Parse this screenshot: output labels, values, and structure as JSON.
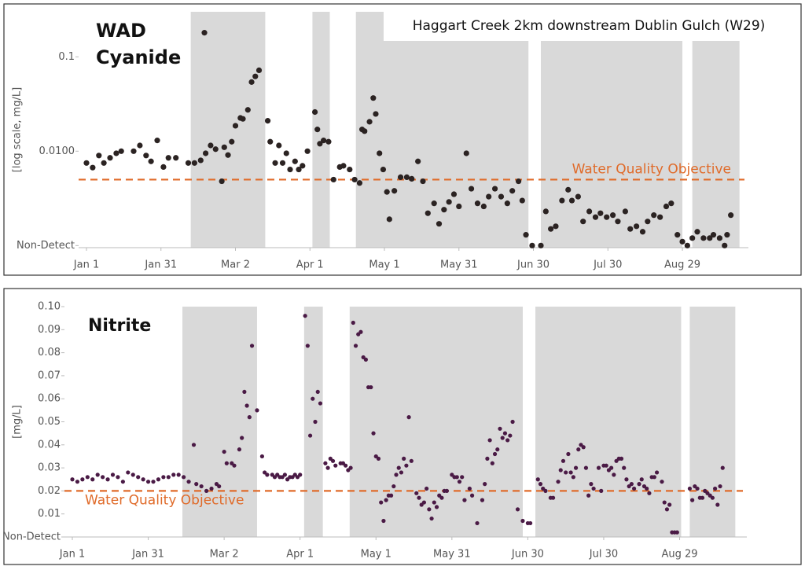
{
  "title": "Haggart Creek 2km downstream Dublin Gulch (W29)",
  "chart_data": [
    {
      "type": "scatter",
      "title": "WAD Cyanide",
      "ylabel": "[log scale, mg/L]",
      "log_y": true,
      "color": "#2b2322",
      "xlim": [
        0,
        265
      ],
      "ylim": [
        0.00095,
        0.3
      ],
      "xticks": [
        {
          "value": 0,
          "label": "Jan 1"
        },
        {
          "value": 30,
          "label": "Jan 31"
        },
        {
          "value": 60,
          "label": "Mar 2"
        },
        {
          "value": 90,
          "label": "Apr 1"
        },
        {
          "value": 120,
          "label": "May 1"
        },
        {
          "value": 150,
          "label": "May 31"
        },
        {
          "value": 180,
          "label": "Jun 30"
        },
        {
          "value": 210,
          "label": "Jul 30"
        },
        {
          "value": 240,
          "label": "Aug 29"
        }
      ],
      "yticks": [
        {
          "value": 0.001,
          "label": "Non-Detect"
        },
        {
          "value": 0.01,
          "label": "0.0100"
        },
        0.1
      ],
      "objective": {
        "label": "Water Quality Objective",
        "value": 0.005,
        "color": "#e06b2a"
      },
      "shaded_periods": [
        [
          42,
          72
        ],
        [
          91,
          98
        ],
        [
          108.5,
          178
        ],
        [
          183,
          240
        ],
        [
          244,
          263
        ]
      ],
      "shade_color": "#d9d9d9",
      "x": [
        0,
        2.5,
        5,
        7,
        9.5,
        12,
        14,
        19,
        21.5,
        24,
        26,
        28.5,
        31,
        33,
        36,
        41,
        43.5,
        46,
        47.5,
        48,
        50,
        52,
        54.5,
        55.5,
        57,
        58.5,
        60,
        62,
        63,
        65,
        66.5,
        68,
        69.5,
        73,
        74,
        76,
        77.5,
        79,
        80.5,
        82,
        84,
        85.5,
        87,
        89,
        92,
        93,
        94,
        95.5,
        97.5,
        99.5,
        102,
        103.5,
        106,
        108,
        110,
        111,
        112,
        114,
        115.5,
        116.5,
        118,
        119.5,
        121,
        122,
        124,
        126.5,
        129,
        131,
        133.5,
        135.5,
        137.5,
        140,
        142,
        144,
        146,
        148,
        150,
        153,
        155,
        157.5,
        160,
        162,
        164.5,
        167,
        169.5,
        171.5,
        174,
        175.5,
        177,
        179.5,
        183,
        185,
        187,
        189,
        191.5,
        194,
        195.5,
        198,
        200,
        202.5,
        205,
        207,
        209.5,
        212,
        214,
        217,
        219,
        221.5,
        224,
        226,
        228.5,
        231,
        233.5,
        235.5,
        238,
        240,
        242,
        244,
        246,
        248.5,
        251,
        252.5,
        255,
        257,
        258,
        259.5
      ],
      "values": [
        0.0075,
        0.0067,
        0.009,
        0.0075,
        0.0085,
        0.0095,
        0.01,
        0.01,
        0.0115,
        0.009,
        0.0078,
        0.013,
        0.0068,
        0.0085,
        0.0085,
        0.0075,
        0.0075,
        0.008,
        0.18,
        0.0095,
        0.0115,
        0.0105,
        0.0048,
        0.011,
        0.0091,
        0.0126,
        0.0186,
        0.0225,
        0.022,
        0.0274,
        0.054,
        0.062,
        0.072,
        0.021,
        0.0126,
        0.0075,
        0.0115,
        0.0075,
        0.0095,
        0.0064,
        0.0078,
        0.0064,
        0.007,
        0.01,
        0.026,
        0.017,
        0.012,
        0.013,
        0.0126,
        0.005,
        0.0068,
        0.007,
        0.0064,
        0.005,
        0.0046,
        0.017,
        0.0163,
        0.0205,
        0.0366,
        0.0248,
        0.0095,
        0.0064,
        0.0037,
        0.0019,
        0.0038,
        0.0053,
        0.0053,
        0.0051,
        0.0078,
        0.0048,
        0.0022,
        0.0028,
        0.0017,
        0.0024,
        0.0029,
        0.0035,
        0.0026,
        0.0095,
        0.004,
        0.0028,
        0.0026,
        0.0033,
        0.004,
        0.0033,
        0.0028,
        0.0038,
        0.0048,
        0.003,
        0.0013,
        0.001,
        0.001,
        0.0023,
        0.0015,
        0.0016,
        0.003,
        0.0039,
        0.003,
        0.0033,
        0.0018,
        0.0023,
        0.002,
        0.0022,
        0.002,
        0.0021,
        0.0018,
        0.0023,
        0.0015,
        0.0016,
        0.0014,
        0.0018,
        0.0021,
        0.002,
        0.0026,
        0.0028,
        0.0013,
        0.0011,
        0.001,
        0.0012,
        0.0014,
        0.0012,
        0.0012,
        0.0013,
        0.0012,
        0.001,
        0.0013,
        0.0021
      ]
    },
    {
      "type": "scatter",
      "title": "Nitrite",
      "ylabel": "[mg/L]",
      "log_y": false,
      "color": "#4a1a45",
      "xlim": [
        0,
        265
      ],
      "ylim": [
        0,
        0.1
      ],
      "xticks": [
        {
          "value": 0,
          "label": "Jan 1"
        },
        {
          "value": 30,
          "label": "Jan 31"
        },
        {
          "value": 60,
          "label": "Mar 2"
        },
        {
          "value": 90,
          "label": "Apr 1"
        },
        {
          "value": 120,
          "label": "May 1"
        },
        {
          "value": 150,
          "label": "May 31"
        },
        {
          "value": 180,
          "label": "Jun 30"
        },
        {
          "value": 210,
          "label": "Jul 30"
        },
        {
          "value": 240,
          "label": "Aug 29"
        }
      ],
      "yticks": [
        {
          "value": 0,
          "label": "Non-Detect"
        },
        0.01,
        0.02,
        0.03,
        0.04,
        0.05,
        0.06,
        0.07,
        0.08,
        0.09,
        {
          "value": 0.1,
          "label": "0.10"
        }
      ],
      "objective": {
        "label": "Water Quality Objective",
        "value": 0.02,
        "color": "#e06b2a"
      },
      "shaded_periods": [
        [
          43.5,
          73
        ],
        [
          91.6,
          99
        ],
        [
          109.6,
          178
        ],
        [
          183,
          240.6
        ],
        [
          244,
          262
        ]
      ],
      "shade_color": "#d9d9d9",
      "x": [
        0,
        2,
        4,
        6,
        8,
        10,
        12,
        14,
        16,
        18,
        20,
        22,
        24,
        26,
        28,
        30,
        32,
        34,
        36,
        38,
        40,
        42,
        44,
        46,
        48,
        49,
        51,
        53,
        55,
        57,
        58,
        60,
        61,
        63,
        64,
        66,
        67,
        68,
        69,
        70,
        71,
        73,
        75,
        76,
        77,
        79,
        80,
        81,
        82,
        83,
        84,
        85,
        86,
        87,
        88,
        89,
        90,
        92,
        93,
        94,
        95,
        96,
        97,
        98,
        100,
        101,
        102,
        103,
        104,
        106,
        107,
        108,
        109,
        110,
        111,
        112,
        113,
        114,
        115,
        116,
        117,
        118,
        119,
        120,
        121,
        122,
        123,
        124,
        125,
        126,
        127,
        128,
        129,
        130,
        131,
        132,
        133,
        134,
        136,
        137,
        138,
        139,
        140,
        141,
        142,
        143,
        144,
        145,
        146,
        147,
        148,
        150,
        151,
        152,
        153,
        154,
        155,
        157,
        158,
        160,
        162,
        163,
        164,
        165,
        166,
        167,
        168,
        169,
        170,
        171,
        172,
        173,
        174,
        176,
        178,
        180,
        181,
        184,
        185,
        186,
        187,
        189,
        190,
        192,
        193,
        194,
        195,
        196,
        197,
        198,
        199,
        200,
        201,
        202,
        203,
        204,
        205,
        206,
        208,
        209,
        210,
        211,
        212,
        213,
        214,
        215,
        216,
        217,
        218,
        219,
        220,
        221,
        222,
        224,
        225,
        226,
        227,
        228,
        229,
        230,
        231,
        233,
        234,
        235,
        236,
        237,
        238,
        239,
        244,
        245,
        246,
        247,
        248,
        249,
        250,
        251,
        252,
        253,
        254,
        255,
        256,
        257
      ],
      "values": [
        0.025,
        0.024,
        0.025,
        0.026,
        0.025,
        0.027,
        0.026,
        0.025,
        0.027,
        0.026,
        0.024,
        0.028,
        0.027,
        0.026,
        0.025,
        0.024,
        0.024,
        0.025,
        0.026,
        0.026,
        0.027,
        0.027,
        0.026,
        0.024,
        0.04,
        0.023,
        0.022,
        0.02,
        0.021,
        0.023,
        0.022,
        0.037,
        0.032,
        0.032,
        0.031,
        0.038,
        0.043,
        0.063,
        0.057,
        0.052,
        0.083,
        0.055,
        0.035,
        0.028,
        0.027,
        0.027,
        0.026,
        0.027,
        0.026,
        0.026,
        0.027,
        0.025,
        0.026,
        0.026,
        0.027,
        0.026,
        0.027,
        0.096,
        0.083,
        0.044,
        0.06,
        0.05,
        0.063,
        0.058,
        0.032,
        0.03,
        0.034,
        0.033,
        0.031,
        0.032,
        0.032,
        0.031,
        0.029,
        0.03,
        0.093,
        0.083,
        0.088,
        0.089,
        0.078,
        0.077,
        0.065,
        0.065,
        0.045,
        0.035,
        0.034,
        0.015,
        0.007,
        0.016,
        0.018,
        0.018,
        0.022,
        0.027,
        0.03,
        0.028,
        0.034,
        0.031,
        0.052,
        0.033,
        0.019,
        0.017,
        0.014,
        0.015,
        0.021,
        0.012,
        0.008,
        0.015,
        0.013,
        0.018,
        0.017,
        0.02,
        0.02,
        0.027,
        0.026,
        0.026,
        0.024,
        0.026,
        0.016,
        0.021,
        0.018,
        0.006,
        0.016,
        0.023,
        0.034,
        0.042,
        0.032,
        0.036,
        0.038,
        0.047,
        0.043,
        0.045,
        0.042,
        0.044,
        0.05,
        0.012,
        0.007,
        0.006,
        0.006,
        0.025,
        0.023,
        0.021,
        0.02,
        0.017,
        0.017,
        0.024,
        0.029,
        0.033,
        0.028,
        0.036,
        0.028,
        0.026,
        0.03,
        0.038,
        0.04,
        0.039,
        0.03,
        0.018,
        0.023,
        0.021,
        0.03,
        0.02,
        0.031,
        0.031,
        0.029,
        0.03,
        0.027,
        0.033,
        0.034,
        0.034,
        0.03,
        0.025,
        0.022,
        0.023,
        0.021,
        0.023,
        0.025,
        0.022,
        0.021,
        0.019,
        0.026,
        0.026,
        0.028,
        0.024,
        0.015,
        0.012,
        0.014,
        0.002,
        0.002,
        0.002,
        0.021,
        0.016,
        0.022,
        0.021,
        0.017,
        0.017,
        0.02,
        0.019,
        0.018,
        0.017,
        0.021,
        0.014,
        0.022,
        0.03
      ]
    }
  ]
}
